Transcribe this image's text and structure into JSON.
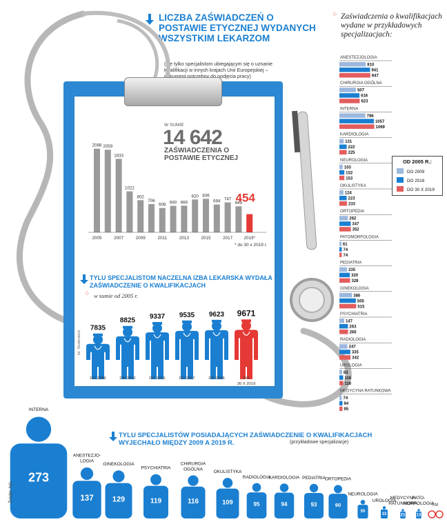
{
  "header": {
    "title": "LICZBA ZAŚWIADCZEŃ O POSTAWIE ETYCZNEJ WYDANYCH WSZYSTKIM LEKARZOM",
    "subtitle": "(nie tylko specjalistom ubiegającym się o uznanie kwalifikacji w innych krajach Unii Europejskiej – dokument potrzebny do podjęcia pracy)"
  },
  "ethics": {
    "total_caption": "W SUMIE",
    "total": "14 642",
    "total_label": "ZAŚWIADCZENIA O POSTAWIE ETYCZNEJ",
    "footnote": "* do 30 x 2019 r."
  },
  "specialists": {
    "title": "TYLU SPECJALISTOM NACZELNA IZBA LEKARSKA WYDAŁA ZAŚWIADCZENIE O KWALIFIKACJACH",
    "subtitle": "w sumie od 2005 r."
  },
  "bars_panel": {
    "title": "Zaświadczenia o kwalifikacjach wydane w przykładowych specjalizacjach:"
  },
  "moved": {
    "title": "TYLU SPECJALISTÓW POSIADAJĄCYCH ZAŚWIADCZENIE O KWALIFIKACJACH WYJECHAŁO MIĘDZY 2009 A 2019 R.",
    "subtitle": "(przykładowe specjalizacje)"
  },
  "source": "Źródło: NIL",
  "photo_credit": "fot. Shutterstock",
  "logo": "RM",
  "colors": {
    "accent": "#1a7fd1",
    "gray_bar": "#9a9a9a",
    "highlight_red": "#e53935",
    "bar_2009": "#9db8de",
    "bar_2018": "#1a7fd1",
    "bar_2019": "#e35d5d",
    "clipboard": "#2c88d2"
  },
  "chart_data": [
    {
      "type": "bar",
      "categories": [
        "2005",
        "2006",
        "2007",
        "2008",
        "2009",
        "2010",
        "2011",
        "2012",
        "2013",
        "2014",
        "2015",
        "2016",
        "2017",
        "2018",
        "2019*"
      ],
      "values": [
        2086,
        2059,
        1833,
        1022,
        802,
        706,
        608,
        660,
        666,
        820,
        836,
        694,
        747,
        649,
        454
      ],
      "tick_labels": [
        "2005",
        "2007",
        "2009",
        "2011",
        "2013",
        "2015",
        "2017",
        "2019*"
      ],
      "xlabel": "",
      "ylabel": "",
      "highlight_last": true
    },
    {
      "type": "bar",
      "categories": [
        "DO 2009",
        "DO 2012",
        "DO 2015",
        "DO 2017",
        "DO 2018",
        "DO 30 X 2019"
      ],
      "values": [
        7835,
        8825,
        9337,
        9535,
        9623,
        9671
      ],
      "icon": "doctor-figure-icon"
    },
    {
      "type": "bar",
      "orientation": "horizontal",
      "legend_title": "OD 2005 R.:",
      "legend_position": "right",
      "series": [
        {
          "name": "DO 2009",
          "color": "#9db8de"
        },
        {
          "name": "DO 2018",
          "color": "#1a7fd1"
        },
        {
          "name": "DO 30 X 2019",
          "color": "#e35d5d"
        }
      ],
      "categories": [
        "ANESTEZJOLOGIA",
        "CHIRURGIA OGÓLNA",
        "INTERNA",
        "KARDIOLOGIA",
        "NEUROLOGIA",
        "OKULISTYKA",
        "ORTOPEDIA",
        "PATOMORFOLOGIA",
        "PEDIATRIA",
        "GINEKOLOGIA",
        "PSYCHIATRIA",
        "RADIOLOGIA",
        "UROLOGIA",
        "MEDYCYNA RATUNKOWA"
      ],
      "values": [
        [
          810,
          941,
          947
        ],
        [
          507,
          616,
          623
        ],
        [
          796,
          1057,
          1069
        ],
        [
          131,
          222,
          225
        ],
        [
          103,
          152,
          153
        ],
        [
          124,
          223,
          233
        ],
        [
          262,
          347,
          352
        ],
        [
          61,
          74,
          74
        ],
        [
          235,
          320,
          328
        ],
        [
          386,
          505,
          515
        ],
        [
          147,
          263,
          266
        ],
        [
          247,
          335,
          342
        ],
        [
          83,
          116,
          116
        ],
        [
          74,
          94,
          95
        ]
      ]
    },
    {
      "type": "bar",
      "icon": "person-icon",
      "categories": [
        "INTERNA",
        "ANESTEZJOLOGIA",
        "GINEKOLOGIA",
        "PSYCHIATRIA",
        "CHIRURGIA OGÓLNA",
        "OKULISTYKA",
        "RADIOLOGIA",
        "KARDIOLOGIA",
        "PEDIATRIA",
        "ORTOPEDIA",
        "NEUROLOGIA",
        "UROLOGIA",
        "MEDYCYNA RATUNKOWA",
        "PATO-MORFOLOGIA"
      ],
      "values": [
        273,
        137,
        129,
        119,
        116,
        109,
        95,
        94,
        93,
        90,
        50,
        33,
        21,
        13
      ]
    }
  ]
}
